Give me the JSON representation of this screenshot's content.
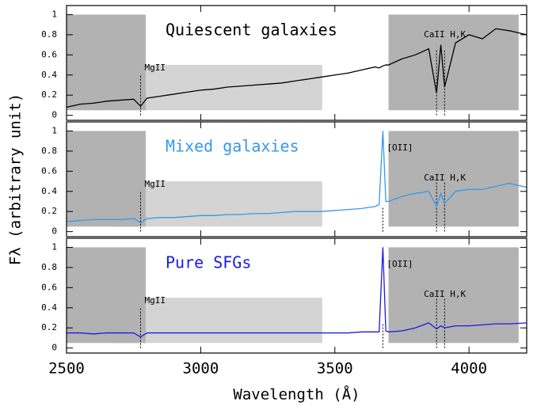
{
  "chart_data": [
    {
      "type": "line",
      "title": "Quiescent galaxies",
      "title_color": "#000000",
      "x": [
        2500,
        2550,
        2600,
        2650,
        2700,
        2750,
        2776,
        2800,
        2850,
        2900,
        2950,
        3000,
        3050,
        3100,
        3150,
        3200,
        3250,
        3300,
        3350,
        3400,
        3450,
        3500,
        3550,
        3600,
        3650,
        3665,
        3679,
        3690,
        3700,
        3750,
        3800,
        3850,
        3879,
        3895,
        3909,
        3950,
        4000,
        4050,
        4100,
        4150,
        4215
      ],
      "series": [
        {
          "color": "#000000",
          "values": [
            0.08,
            0.11,
            0.12,
            0.14,
            0.15,
            0.16,
            0.09,
            0.17,
            0.19,
            0.21,
            0.23,
            0.25,
            0.26,
            0.28,
            0.29,
            0.3,
            0.31,
            0.32,
            0.34,
            0.36,
            0.38,
            0.4,
            0.42,
            0.45,
            0.48,
            0.47,
            0.49,
            0.5,
            0.5,
            0.56,
            0.6,
            0.66,
            0.22,
            0.7,
            0.28,
            0.72,
            0.8,
            0.76,
            0.86,
            0.84,
            0.8
          ]
        }
      ],
      "xlim": [
        2500,
        4215
      ],
      "xticks": [
        2500,
        3000,
        3500,
        4000
      ],
      "ylim": [
        -0.05,
        1.09
      ],
      "yticks": [
        0,
        0.2,
        0.4,
        0.6,
        0.8,
        1
      ],
      "regions": [
        {
          "x": [
            2671,
            3453
          ],
          "y": [
            0.05,
            0.5
          ],
          "color": "#d4d4d4"
        },
        {
          "x": [
            2500,
            2795
          ],
          "y": [
            0.05,
            1
          ],
          "color": "#b2b2b2"
        },
        {
          "x": [
            3700,
            4185
          ],
          "y": [
            0.05,
            1
          ],
          "color": "#b2b2b2"
        }
      ],
      "annotations": [
        {
          "text": "MgII",
          "x": [
            2776
          ],
          "y": [
            0,
            0.4
          ],
          "text_y": 0.47
        },
        {
          "text": "CaII H,K",
          "x": [
            3879,
            3909
          ],
          "y": [
            0,
            0.66
          ],
          "text_y": 0.8
        }
      ]
    },
    {
      "type": "line",
      "title": "Mixed galaxies",
      "title_color": "#3399ee",
      "ylabel": "Fλ (arbitrary unit)",
      "x": [
        2500,
        2550,
        2600,
        2650,
        2700,
        2750,
        2776,
        2800,
        2850,
        2900,
        2950,
        3000,
        3050,
        3100,
        3150,
        3200,
        3250,
        3300,
        3350,
        3400,
        3450,
        3500,
        3550,
        3600,
        3650,
        3665,
        3679,
        3690,
        3700,
        3750,
        3800,
        3850,
        3879,
        3895,
        3909,
        3950,
        4000,
        4050,
        4100,
        4150,
        4215
      ],
      "series": [
        {
          "color": "#3399ee",
          "values": [
            0.1,
            0.11,
            0.12,
            0.12,
            0.12,
            0.13,
            0.09,
            0.13,
            0.14,
            0.14,
            0.15,
            0.16,
            0.16,
            0.17,
            0.17,
            0.18,
            0.18,
            0.19,
            0.2,
            0.2,
            0.2,
            0.21,
            0.22,
            0.23,
            0.25,
            0.27,
            1.0,
            0.3,
            0.3,
            0.35,
            0.38,
            0.4,
            0.25,
            0.38,
            0.28,
            0.4,
            0.42,
            0.42,
            0.45,
            0.48,
            0.44
          ]
        }
      ],
      "xlim": [
        2500,
        4215
      ],
      "xticks": [
        2500,
        3000,
        3500,
        4000
      ],
      "ylim": [
        -0.05,
        1.09
      ],
      "yticks": [
        0,
        0.2,
        0.4,
        0.6,
        0.8,
        1
      ],
      "regions": [
        {
          "x": [
            2671,
            3453
          ],
          "y": [
            0.05,
            0.5
          ],
          "color": "#d4d4d4"
        },
        {
          "x": [
            2500,
            2795
          ],
          "y": [
            0.05,
            1
          ],
          "color": "#b2b2b2"
        },
        {
          "x": [
            3700,
            4185
          ],
          "y": [
            0.05,
            1
          ],
          "color": "#b2b2b2"
        }
      ],
      "annotations": [
        {
          "text": "MgII",
          "x": [
            2776
          ],
          "y": [
            0,
            0.4
          ],
          "text_y": 0.47
        },
        {
          "text": "[OII]",
          "x": [
            3679
          ],
          "y": [
            0,
            0.25
          ],
          "text_y": 0.83
        },
        {
          "text": "CaII H,K",
          "x": [
            3879,
            3909
          ],
          "y": [
            0,
            0.5
          ],
          "text_y": 0.53
        }
      ]
    },
    {
      "type": "line",
      "title": "Pure SFGs",
      "title_color": "#1a1ae6",
      "xlabel": "Wavelength (Å)",
      "x": [
        2500,
        2550,
        2600,
        2650,
        2700,
        2750,
        2776,
        2800,
        2850,
        2900,
        2950,
        3000,
        3050,
        3100,
        3150,
        3200,
        3250,
        3300,
        3350,
        3400,
        3450,
        3500,
        3550,
        3600,
        3650,
        3665,
        3679,
        3690,
        3700,
        3750,
        3800,
        3850,
        3879,
        3895,
        3909,
        3950,
        4000,
        4050,
        4100,
        4150,
        4215
      ],
      "series": [
        {
          "color": "#1a1ae6",
          "values": [
            0.15,
            0.15,
            0.14,
            0.15,
            0.15,
            0.15,
            0.11,
            0.15,
            0.15,
            0.15,
            0.15,
            0.15,
            0.15,
            0.15,
            0.15,
            0.15,
            0.15,
            0.15,
            0.15,
            0.15,
            0.15,
            0.15,
            0.15,
            0.16,
            0.16,
            0.16,
            1.0,
            0.17,
            0.16,
            0.17,
            0.2,
            0.25,
            0.19,
            0.22,
            0.2,
            0.22,
            0.22,
            0.23,
            0.24,
            0.24,
            0.25
          ]
        }
      ],
      "xlim": [
        2500,
        4215
      ],
      "xticks": [
        2500,
        3000,
        3500,
        4000
      ],
      "ylim": [
        -0.05,
        1.09
      ],
      "yticks": [
        0,
        0.2,
        0.4,
        0.6,
        0.8,
        1
      ],
      "regions": [
        {
          "x": [
            2671,
            3453
          ],
          "y": [
            0.05,
            0.5
          ],
          "color": "#d4d4d4"
        },
        {
          "x": [
            2500,
            2795
          ],
          "y": [
            0.05,
            1
          ],
          "color": "#b2b2b2"
        },
        {
          "x": [
            3700,
            4185
          ],
          "y": [
            0.05,
            1
          ],
          "color": "#b2b2b2"
        }
      ],
      "annotations": [
        {
          "text": "MgII",
          "x": [
            2776
          ],
          "y": [
            0,
            0.4
          ],
          "text_y": 0.47
        },
        {
          "text": "[OII]",
          "x": [
            3679
          ],
          "y": [
            0,
            0.25
          ],
          "text_y": 0.83
        },
        {
          "text": "CaII H,K",
          "x": [
            3879,
            3909
          ],
          "y": [
            0,
            0.5
          ],
          "text_y": 0.53
        }
      ]
    }
  ]
}
